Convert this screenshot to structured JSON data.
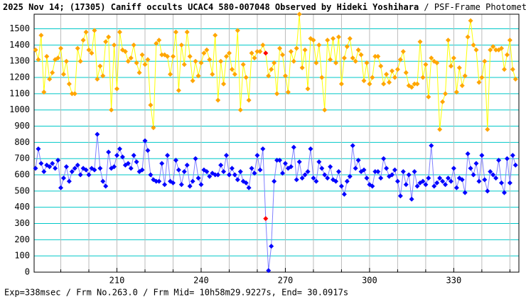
{
  "chart_data": {
    "type": "line",
    "title": "2025 Nov 14; (17305) Caniff occults UCAC4 580-007048 Observed by Hideki Yoshihara",
    "subtitle": " / PSF-Frame Photometry /",
    "footer": "Exp=338msec / Frm No.263.0 / Frm Mid= 10h58m29.9227s, End= 30.0917s",
    "x": [
      181,
      182,
      183,
      184,
      185,
      186,
      187,
      188,
      189,
      190,
      191,
      192,
      193,
      194,
      195,
      196,
      197,
      198,
      199,
      200,
      201,
      202,
      203,
      204,
      205,
      206,
      207,
      208,
      209,
      210,
      211,
      212,
      213,
      214,
      215,
      216,
      217,
      218,
      219,
      220,
      221,
      222,
      223,
      224,
      225,
      226,
      227,
      228,
      229,
      230,
      231,
      232,
      233,
      234,
      235,
      236,
      237,
      238,
      239,
      240,
      241,
      242,
      243,
      244,
      245,
      246,
      247,
      248,
      249,
      250,
      251,
      252,
      253,
      254,
      255,
      256,
      257,
      258,
      259,
      260,
      261,
      262,
      263,
      264,
      265,
      266,
      267,
      268,
      269,
      270,
      271,
      272,
      273,
      274,
      275,
      276,
      277,
      278,
      279,
      280,
      281,
      282,
      283,
      284,
      285,
      286,
      287,
      288,
      289,
      290,
      291,
      292,
      293,
      294,
      295,
      296,
      297,
      298,
      299,
      300,
      301,
      302,
      303,
      304,
      305,
      306,
      307,
      308,
      309,
      310,
      311,
      312,
      313,
      314,
      315,
      316,
      317,
      318,
      319,
      320,
      321,
      322,
      323,
      324,
      325,
      326,
      327,
      328,
      329,
      330,
      331,
      332,
      333,
      334,
      335,
      336,
      337,
      338,
      339,
      340,
      341,
      342,
      343,
      344,
      345,
      346,
      347,
      348,
      349,
      350,
      351,
      352
    ],
    "series": [
      {
        "color": "#ffa500",
        "line_color": "#ffff00",
        "values": [
          1370,
          1310,
          1460,
          1110,
          1330,
          1190,
          1230,
          1310,
          1320,
          1380,
          1220,
          1300,
          1160,
          1100,
          1100,
          1380,
          1300,
          1430,
          1480,
          1370,
          1350,
          1490,
          1190,
          1270,
          1210,
          1420,
          1450,
          1000,
          1400,
          1130,
          1480,
          1370,
          1360,
          1300,
          1320,
          1400,
          1290,
          1230,
          1340,
          1280,
          1310,
          1030,
          890,
          1410,
          1430,
          1340,
          1340,
          1330,
          1220,
          1330,
          1480,
          1120,
          1400,
          1280,
          1480,
          1330,
          1180,
          1300,
          1210,
          1290,
          1350,
          1370,
          1310,
          1220,
          1460,
          1060,
          1300,
          1160,
          1330,
          1350,
          1250,
          1220,
          1490,
          1000,
          1280,
          1200,
          1060,
          1350,
          1320,
          1360,
          1360,
          1400,
          1350,
          1210,
          1250,
          1290,
          1100,
          1380,
          1340,
          1210,
          1110,
          1360,
          1300,
          1380,
          1590,
          1260,
          1370,
          1130,
          1440,
          1430,
          1290,
          1400,
          1200,
          1000,
          1430,
          1310,
          1440,
          1290,
          1450,
          1160,
          1320,
          1390,
          1440,
          1320,
          1300,
          1370,
          1340,
          1180,
          1290,
          1160,
          1200,
          1330,
          1330,
          1270,
          1160,
          1220,
          1170,
          1240,
          1200,
          1250,
          1310,
          1360,
          1230,
          1150,
          1140,
          1160,
          1160,
          1420,
          1200,
          1280,
          1080,
          1320,
          1300,
          1290,
          880,
          1050,
          1100,
          1430,
          1270,
          1320,
          1110,
          1260,
          1150,
          1210,
          1450,
          1550,
          1400,
          1370,
          1170,
          1200,
          1300,
          880,
          1370,
          1390,
          1370,
          1370,
          1380,
          1250,
          1340,
          1430,
          1250,
          1190
        ]
      },
      {
        "color": "#0000ff",
        "line_color": "#8080ff",
        "values": [
          640,
          760,
          670,
          620,
          660,
          650,
          670,
          640,
          690,
          520,
          580,
          650,
          560,
          620,
          640,
          660,
          600,
          640,
          630,
          600,
          640,
          630,
          850,
          640,
          560,
          530,
          740,
          640,
          650,
          720,
          760,
          710,
          660,
          670,
          640,
          720,
          680,
          620,
          630,
          810,
          750,
          600,
          570,
          560,
          560,
          670,
          540,
          720,
          560,
          550,
          690,
          630,
          540,
          620,
          660,
          530,
          560,
          700,
          580,
          540,
          630,
          620,
          590,
          610,
          600,
          600,
          660,
          620,
          720,
          600,
          640,
          600,
          570,
          620,
          560,
          550,
          520,
          640,
          610,
          720,
          630,
          760,
          330,
          10,
          160,
          560,
          690,
          690,
          610,
          670,
          640,
          650,
          770,
          570,
          680,
          580,
          600,
          620,
          760,
          580,
          560,
          680,
          640,
          600,
          580,
          650,
          570,
          560,
          620,
          530,
          480,
          560,
          590,
          780,
          640,
          690,
          620,
          630,
          580,
          540,
          530,
          620,
          620,
          580,
          700,
          640,
          590,
          600,
          630,
          560,
          470,
          620,
          540,
          600,
          450,
          620,
          530,
          550,
          560,
          540,
          580,
          780,
          530,
          550,
          580,
          560,
          540,
          580,
          560,
          640,
          520,
          580,
          570,
          490,
          730,
          640,
          600,
          670,
          560,
          720,
          570,
          500,
          620,
          600,
          580,
          690,
          550,
          490,
          700,
          550,
          720,
          660
        ]
      }
    ],
    "highlight_x": 263,
    "highlight_color": "#ff0000",
    "xlim": [
      180.5,
      353.2
    ],
    "xticks": [
      210,
      240,
      270,
      300,
      330
    ],
    "xminor": [
      190,
      200,
      220,
      230,
      250,
      260,
      280,
      290,
      310,
      320,
      340,
      350
    ],
    "ylim": [
      0,
      1590
    ],
    "yticks": [
      0,
      100,
      200,
      300,
      400,
      500,
      600,
      700,
      800,
      900,
      1000,
      1100,
      1200,
      1300,
      1400,
      1500
    ],
    "grid": true
  }
}
